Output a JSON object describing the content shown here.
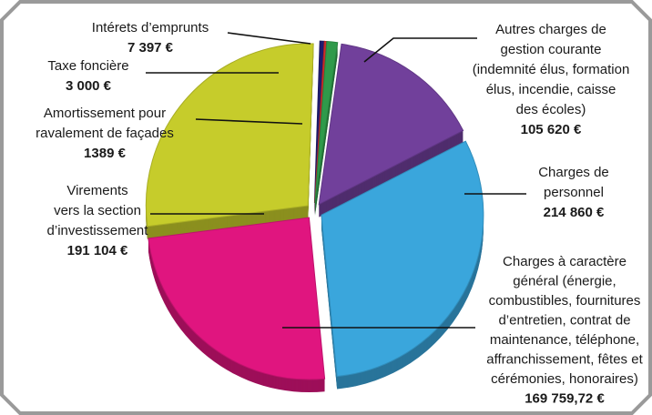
{
  "chart_data": {
    "type": "pie",
    "categories": [
      [
        "Autres charges de",
        "gestion courante",
        "(indemnité élus, formation",
        "élus, incendie, caisse",
        "des écoles)"
      ],
      [
        "Charges de",
        "personnel"
      ],
      [
        "Charges à caractère",
        "général (énergie,",
        "combustibles, fournitures",
        "d’entretien, contrat de",
        "maintenance, téléphone,",
        "affranchissement, fêtes et",
        "cérémonies, honoraires)"
      ],
      [
        "Virements",
        "vers la section",
        "d’investissement"
      ],
      [
        "Taxe foncière"
      ],
      [
        "Amortissement pour",
        "ravalement de façades"
      ],
      [
        "Intérets d’emprunts"
      ]
    ],
    "values": [
      105620,
      214860,
      169759.72,
      191104,
      3000,
      1389,
      7397
    ],
    "value_labels": [
      "105 620 €",
      "214 860 €",
      "169 759,72 €",
      "191 104 €",
      "3 000 €",
      "1389 €",
      "7 397 €"
    ],
    "colors": [
      "#71409b",
      "#3aa6dc",
      "#e0157f",
      "#c6cc2b",
      "#1e1b70",
      "#d22c2c",
      "#2f9a4a"
    ]
  }
}
